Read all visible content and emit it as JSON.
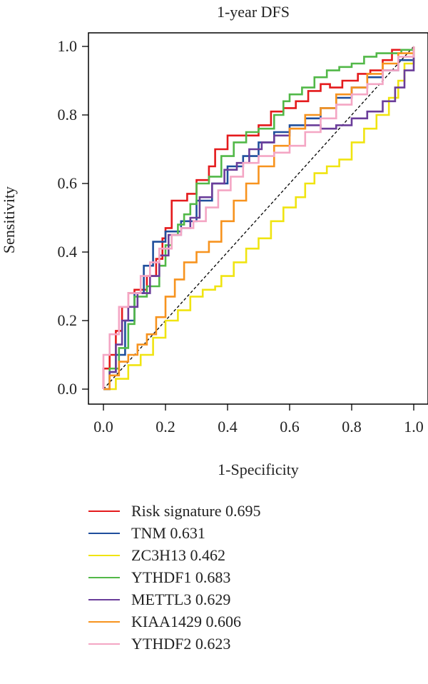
{
  "chart_data": {
    "type": "line",
    "title": "1-year DFS",
    "xlabel": "1-Specificity",
    "ylabel": "Sensitivity",
    "xlim": [
      0,
      1
    ],
    "ylim": [
      0,
      1
    ],
    "xticks": [
      "0.0",
      "0.2",
      "0.4",
      "0.6",
      "0.8",
      "1.0"
    ],
    "yticks": [
      "0.0",
      "0.2",
      "0.4",
      "0.6",
      "0.8",
      "1.0"
    ],
    "grid": false,
    "reference_line": "diagonal dashed",
    "legend_position": "bottom",
    "series": [
      {
        "name": "Risk signature 0.695",
        "color": "#e41a1c",
        "points": [
          [
            0,
            0
          ],
          [
            0,
            0.06
          ],
          [
            0.02,
            0.1
          ],
          [
            0.04,
            0.17
          ],
          [
            0.06,
            0.24
          ],
          [
            0.08,
            0.28
          ],
          [
            0.1,
            0.29
          ],
          [
            0.14,
            0.33
          ],
          [
            0.17,
            0.38
          ],
          [
            0.19,
            0.44
          ],
          [
            0.2,
            0.47
          ],
          [
            0.22,
            0.55
          ],
          [
            0.27,
            0.57
          ],
          [
            0.3,
            0.61
          ],
          [
            0.34,
            0.65
          ],
          [
            0.36,
            0.7
          ],
          [
            0.4,
            0.74
          ],
          [
            0.45,
            0.74
          ],
          [
            0.5,
            0.77
          ],
          [
            0.54,
            0.81
          ],
          [
            0.58,
            0.82
          ],
          [
            0.62,
            0.84
          ],
          [
            0.66,
            0.87
          ],
          [
            0.7,
            0.89
          ],
          [
            0.73,
            0.88
          ],
          [
            0.77,
            0.9
          ],
          [
            0.82,
            0.92
          ],
          [
            0.86,
            0.93
          ],
          [
            0.9,
            0.96
          ],
          [
            0.93,
            0.99
          ],
          [
            0.96,
            0.99
          ],
          [
            1,
            1
          ]
        ]
      },
      {
        "name": "TNM 0.631",
        "color": "#1f4e9c",
        "points": [
          [
            0,
            0
          ],
          [
            0.02,
            0.05
          ],
          [
            0.04,
            0.1
          ],
          [
            0.07,
            0.2
          ],
          [
            0.1,
            0.28
          ],
          [
            0.13,
            0.36
          ],
          [
            0.16,
            0.43
          ],
          [
            0.2,
            0.46
          ],
          [
            0.25,
            0.49
          ],
          [
            0.3,
            0.55
          ],
          [
            0.35,
            0.6
          ],
          [
            0.4,
            0.65
          ],
          [
            0.45,
            0.68
          ],
          [
            0.5,
            0.72
          ],
          [
            0.55,
            0.75
          ],
          [
            0.6,
            0.77
          ],
          [
            0.65,
            0.79
          ],
          [
            0.7,
            0.82
          ],
          [
            0.75,
            0.85
          ],
          [
            0.8,
            0.88
          ],
          [
            0.85,
            0.91
          ],
          [
            0.9,
            0.93
          ],
          [
            0.95,
            0.96
          ],
          [
            1,
            1
          ]
        ]
      },
      {
        "name": "ZC3H13 0.462",
        "color": "#f0e411",
        "points": [
          [
            0,
            0
          ],
          [
            0.04,
            0.03
          ],
          [
            0.08,
            0.07
          ],
          [
            0.12,
            0.1
          ],
          [
            0.16,
            0.15
          ],
          [
            0.2,
            0.2
          ],
          [
            0.24,
            0.23
          ],
          [
            0.28,
            0.27
          ],
          [
            0.32,
            0.29
          ],
          [
            0.36,
            0.3
          ],
          [
            0.38,
            0.33
          ],
          [
            0.42,
            0.37
          ],
          [
            0.46,
            0.41
          ],
          [
            0.5,
            0.44
          ],
          [
            0.54,
            0.49
          ],
          [
            0.58,
            0.53
          ],
          [
            0.62,
            0.56
          ],
          [
            0.65,
            0.6
          ],
          [
            0.68,
            0.63
          ],
          [
            0.72,
            0.65
          ],
          [
            0.76,
            0.67
          ],
          [
            0.8,
            0.72
          ],
          [
            0.84,
            0.76
          ],
          [
            0.88,
            0.8
          ],
          [
            0.92,
            0.85
          ],
          [
            0.95,
            0.9
          ],
          [
            0.97,
            0.95
          ],
          [
            1,
            1
          ]
        ]
      },
      {
        "name": "YTHDF1 0.683",
        "color": "#52b848",
        "points": [
          [
            0,
            0
          ],
          [
            0.02,
            0.06
          ],
          [
            0.05,
            0.12
          ],
          [
            0.08,
            0.19
          ],
          [
            0.1,
            0.27
          ],
          [
            0.14,
            0.3
          ],
          [
            0.18,
            0.36
          ],
          [
            0.2,
            0.42
          ],
          [
            0.22,
            0.45
          ],
          [
            0.24,
            0.48
          ],
          [
            0.26,
            0.51
          ],
          [
            0.28,
            0.54
          ],
          [
            0.3,
            0.6
          ],
          [
            0.34,
            0.62
          ],
          [
            0.38,
            0.68
          ],
          [
            0.42,
            0.72
          ],
          [
            0.46,
            0.75
          ],
          [
            0.5,
            0.76
          ],
          [
            0.55,
            0.8
          ],
          [
            0.58,
            0.84
          ],
          [
            0.6,
            0.86
          ],
          [
            0.64,
            0.88
          ],
          [
            0.68,
            0.91
          ],
          [
            0.72,
            0.93
          ],
          [
            0.76,
            0.94
          ],
          [
            0.8,
            0.95
          ],
          [
            0.84,
            0.97
          ],
          [
            0.88,
            0.98
          ],
          [
            0.92,
            0.98
          ],
          [
            0.96,
            0.99
          ],
          [
            1,
            1
          ]
        ]
      },
      {
        "name": "METTL3 0.629",
        "color": "#6a3d9a",
        "points": [
          [
            0,
            0
          ],
          [
            0.02,
            0.05
          ],
          [
            0.04,
            0.13
          ],
          [
            0.06,
            0.2
          ],
          [
            0.08,
            0.24
          ],
          [
            0.11,
            0.28
          ],
          [
            0.15,
            0.33
          ],
          [
            0.18,
            0.39
          ],
          [
            0.21,
            0.45
          ],
          [
            0.25,
            0.47
          ],
          [
            0.28,
            0.5
          ],
          [
            0.31,
            0.56
          ],
          [
            0.35,
            0.6
          ],
          [
            0.39,
            0.64
          ],
          [
            0.43,
            0.66
          ],
          [
            0.47,
            0.7
          ],
          [
            0.51,
            0.72
          ],
          [
            0.55,
            0.74
          ],
          [
            0.6,
            0.76
          ],
          [
            0.65,
            0.77
          ],
          [
            0.7,
            0.76
          ],
          [
            0.75,
            0.77
          ],
          [
            0.8,
            0.79
          ],
          [
            0.85,
            0.81
          ],
          [
            0.9,
            0.84
          ],
          [
            0.94,
            0.88
          ],
          [
            0.97,
            0.93
          ],
          [
            1,
            1
          ]
        ]
      },
      {
        "name": "KIAA1429 0.606",
        "color": "#f7931e",
        "points": [
          [
            0,
            0
          ],
          [
            0.02,
            0.04
          ],
          [
            0.05,
            0.08
          ],
          [
            0.08,
            0.1
          ],
          [
            0.11,
            0.13
          ],
          [
            0.14,
            0.16
          ],
          [
            0.17,
            0.21
          ],
          [
            0.2,
            0.27
          ],
          [
            0.23,
            0.32
          ],
          [
            0.26,
            0.37
          ],
          [
            0.3,
            0.4
          ],
          [
            0.34,
            0.43
          ],
          [
            0.38,
            0.49
          ],
          [
            0.42,
            0.55
          ],
          [
            0.46,
            0.6
          ],
          [
            0.5,
            0.65
          ],
          [
            0.55,
            0.71
          ],
          [
            0.6,
            0.76
          ],
          [
            0.65,
            0.8
          ],
          [
            0.7,
            0.82
          ],
          [
            0.75,
            0.86
          ],
          [
            0.8,
            0.88
          ],
          [
            0.85,
            0.92
          ],
          [
            0.9,
            0.95
          ],
          [
            0.95,
            0.98
          ],
          [
            1,
            1
          ]
        ]
      },
      {
        "name": "YTHDF2 0.623",
        "color": "#f4a6c4",
        "points": [
          [
            0,
            0
          ],
          [
            0,
            0.1
          ],
          [
            0.02,
            0.16
          ],
          [
            0.05,
            0.24
          ],
          [
            0.08,
            0.28
          ],
          [
            0.12,
            0.33
          ],
          [
            0.15,
            0.37
          ],
          [
            0.18,
            0.41
          ],
          [
            0.22,
            0.45
          ],
          [
            0.25,
            0.47
          ],
          [
            0.29,
            0.49
          ],
          [
            0.33,
            0.53
          ],
          [
            0.37,
            0.58
          ],
          [
            0.41,
            0.62
          ],
          [
            0.45,
            0.66
          ],
          [
            0.5,
            0.68
          ],
          [
            0.55,
            0.69
          ],
          [
            0.6,
            0.71
          ],
          [
            0.65,
            0.75
          ],
          [
            0.7,
            0.79
          ],
          [
            0.75,
            0.83
          ],
          [
            0.8,
            0.86
          ],
          [
            0.85,
            0.89
          ],
          [
            0.9,
            0.93
          ],
          [
            0.95,
            0.97
          ],
          [
            1,
            1
          ]
        ]
      }
    ]
  }
}
